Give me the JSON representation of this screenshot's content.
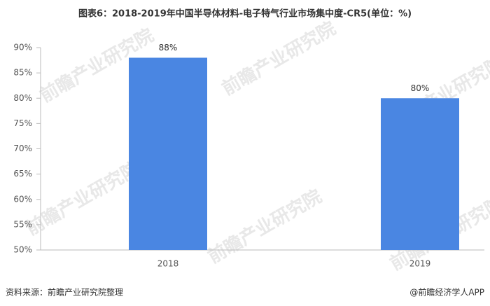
{
  "chart_data": {
    "type": "bar",
    "title": "图表6：2018-2019年中国半导体材料-电子特气行业市场集中度-CR5(单位：%)",
    "categories": [
      "2018",
      "2019"
    ],
    "values": [
      88,
      80
    ],
    "value_labels": [
      "88%",
      "80%"
    ],
    "color": "#4a86e2",
    "ylim": [
      50,
      90
    ],
    "yticks": [
      {
        "value": 50,
        "label": "50%"
      },
      {
        "value": 55,
        "label": "55%"
      },
      {
        "value": 60,
        "label": "60%"
      },
      {
        "value": 65,
        "label": "65%"
      },
      {
        "value": 70,
        "label": "70%"
      },
      {
        "value": 75,
        "label": "75%"
      },
      {
        "value": 80,
        "label": "80%"
      },
      {
        "value": 85,
        "label": "85%"
      },
      {
        "value": 90,
        "label": "90%"
      }
    ],
    "grid": false,
    "source": "资料来源：前瞻产业研究院整理",
    "footer": "@前瞻经济学人APP",
    "watermark": "前瞻产业研究院"
  }
}
